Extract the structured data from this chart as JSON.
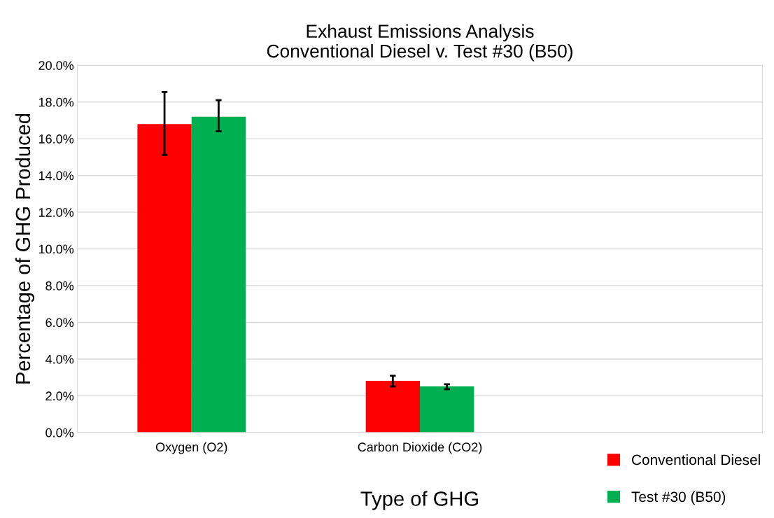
{
  "chart_data": {
    "type": "bar",
    "title": "Exhaust Emissions Analysis\nConventional Diesel v. Test #30 (B50)",
    "xlabel": "Type of GHG",
    "ylabel": "Percentage of GHG Produced",
    "categories": [
      "Oxygen (O2)",
      "Carbon Dioxide (CO2)",
      null
    ],
    "series": [
      {
        "name": "Conventional Diesel",
        "color": "#ff0000",
        "values": [
          16.8,
          2.82,
          null
        ],
        "errors": [
          [
            15.12,
            18.55
          ],
          [
            2.51,
            3.09
          ],
          null
        ]
      },
      {
        "name": "Test #30 (B50)",
        "color": "#00b050",
        "values": [
          17.2,
          2.51,
          null
        ],
        "errors": [
          [
            16.4,
            18.1
          ],
          [
            2.36,
            2.63
          ],
          null
        ]
      }
    ],
    "ylim": [
      0,
      20
    ],
    "yticks": [
      {
        "value": 0,
        "label": "0.0%"
      },
      {
        "value": 2,
        "label": "2.0%"
      },
      {
        "value": 4,
        "label": "4.0%"
      },
      {
        "value": 6,
        "label": "6.0%"
      },
      {
        "value": 8,
        "label": "8.0%"
      },
      {
        "value": 10,
        "label": "10.0%"
      },
      {
        "value": 12,
        "label": "12.0%"
      },
      {
        "value": 14,
        "label": "14.0%"
      },
      {
        "value": 16,
        "label": "16.0%"
      },
      {
        "value": 18,
        "label": "18.0%"
      },
      {
        "value": 20,
        "label": "20.0%"
      }
    ],
    "grid": "y",
    "legend": "bottom right"
  }
}
